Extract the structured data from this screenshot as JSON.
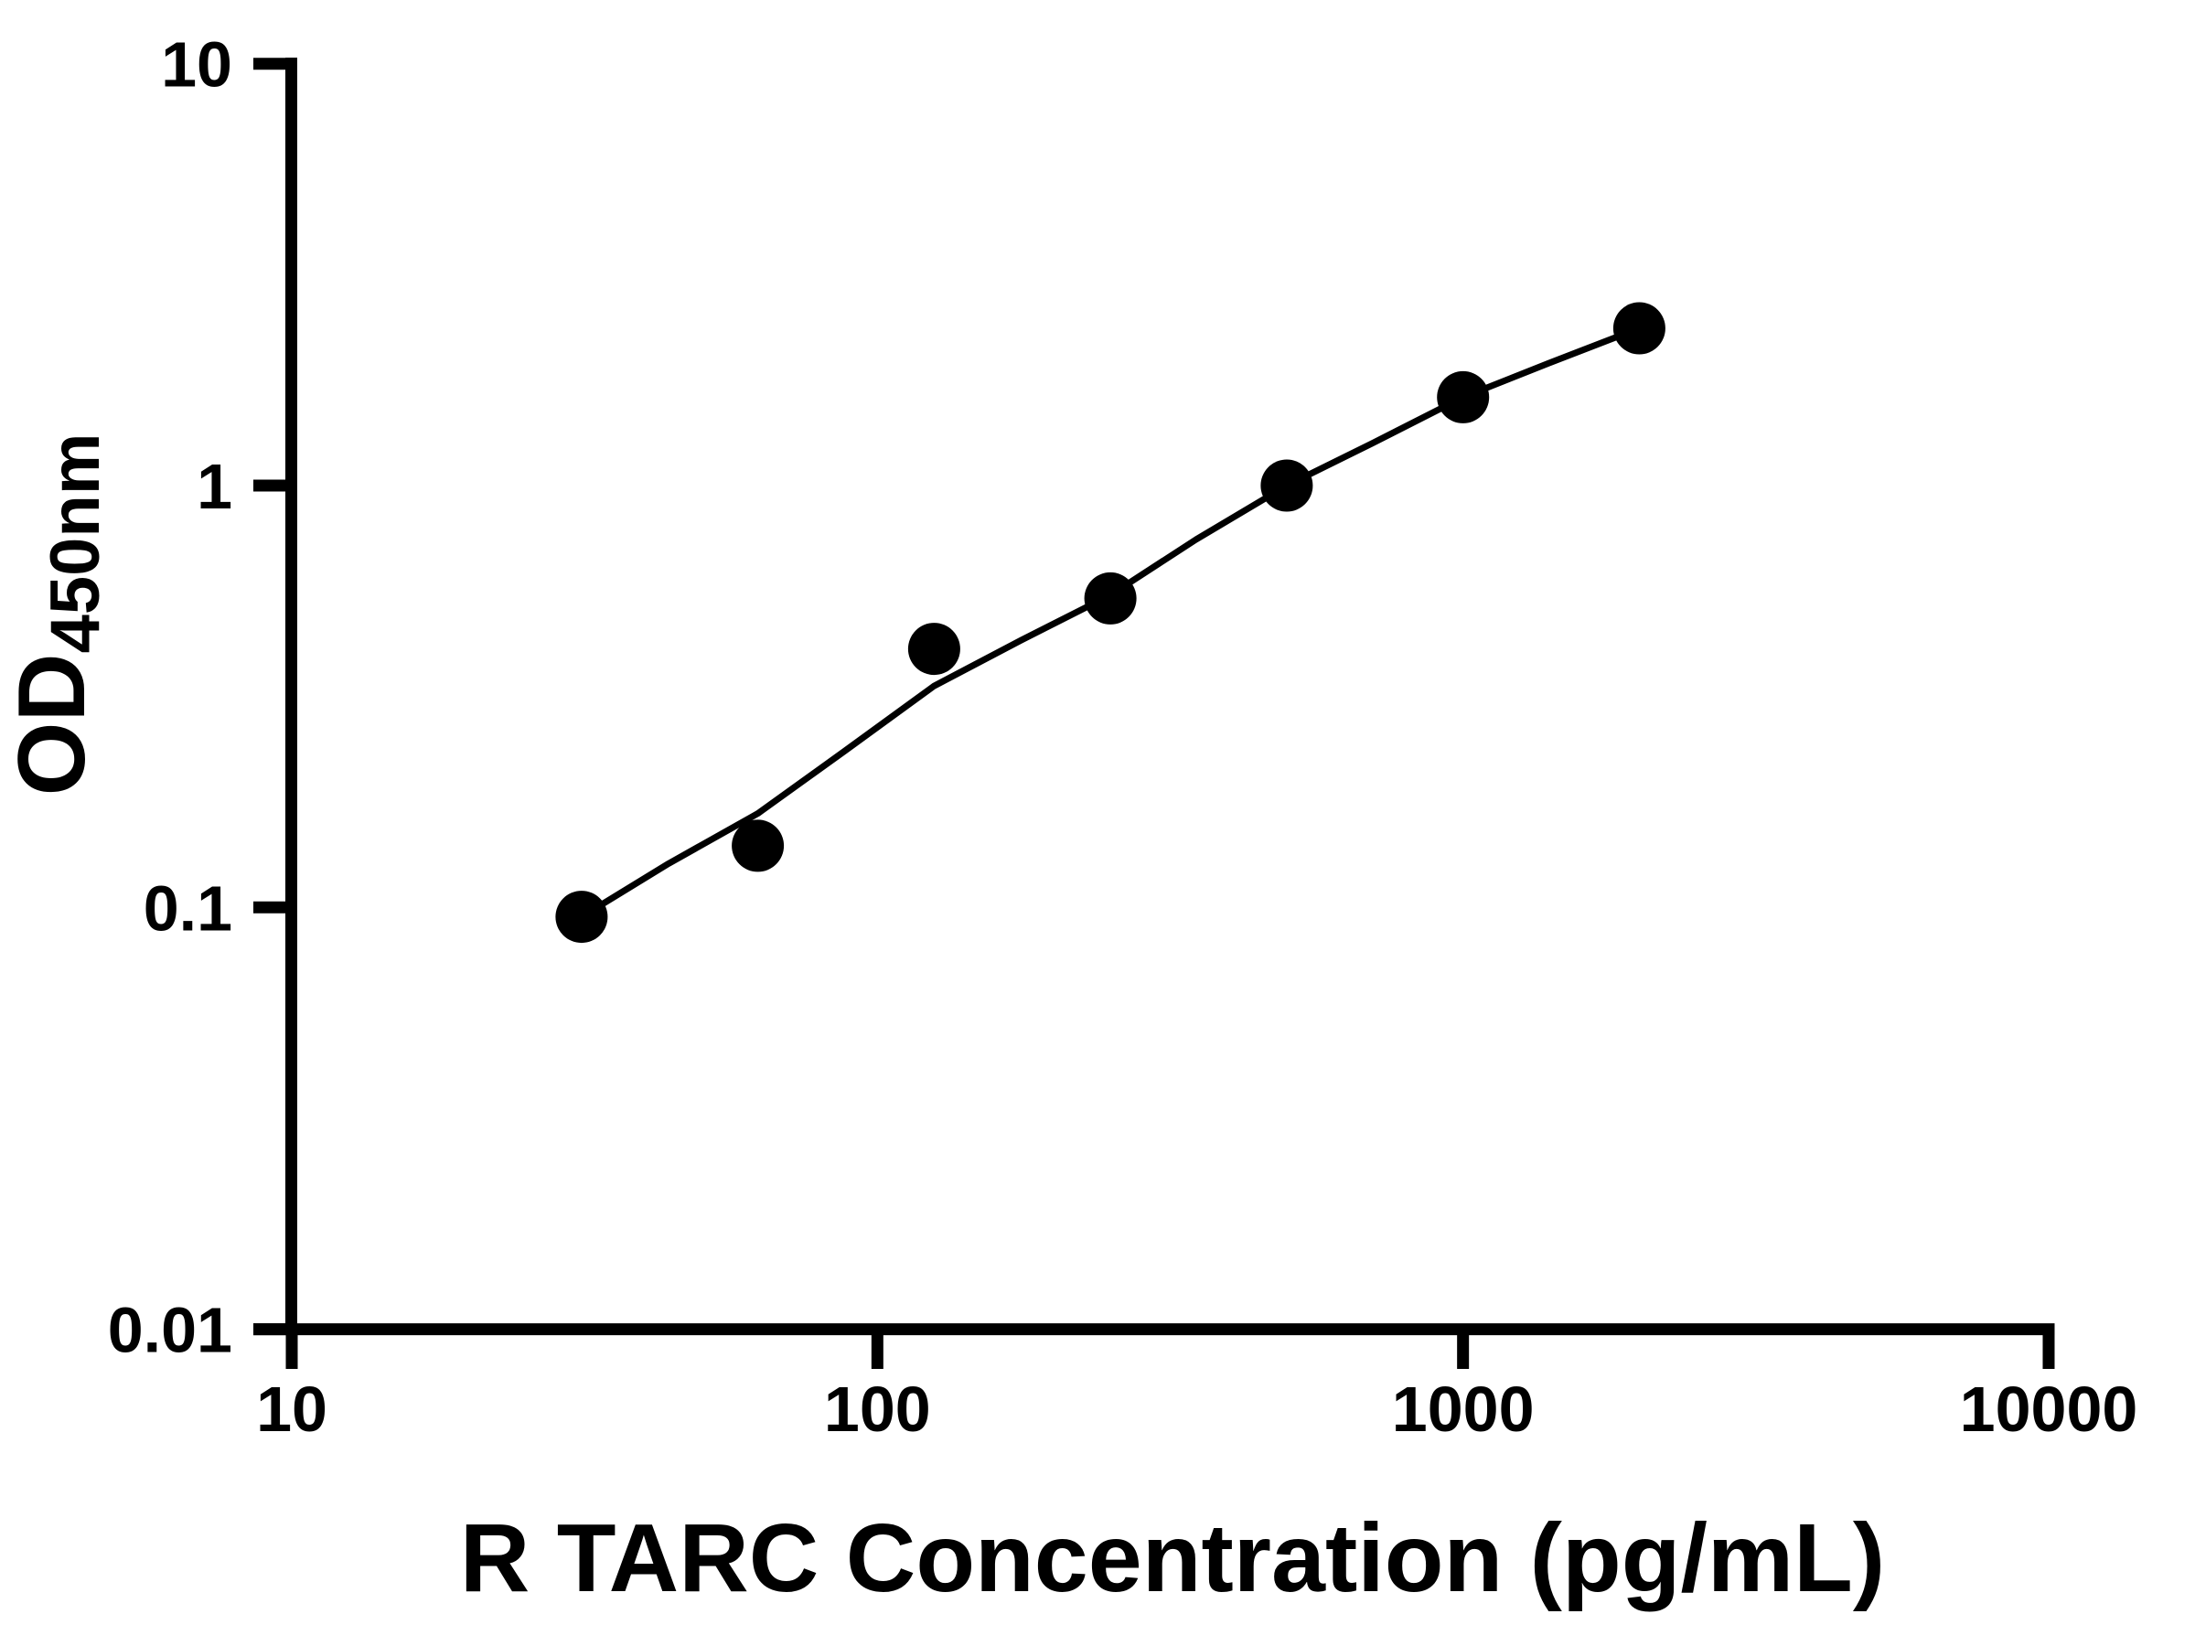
{
  "chart_data": {
    "type": "scatter",
    "background_color": "#ffffff",
    "foreground_color": "#000000",
    "grid": false,
    "x_axis": {
      "label": "R TARC Concentration (pg/mL)",
      "scale": "log",
      "range": [
        10,
        10000
      ],
      "tick_values": [
        10,
        100,
        1000,
        10000
      ],
      "tick_labels": [
        "10",
        "100",
        "1000",
        "10000"
      ]
    },
    "y_axis": {
      "label_main": "OD",
      "label_subscript": "450nm",
      "scale": "log",
      "range": [
        0.01,
        10
      ],
      "tick_values": [
        10,
        1,
        0.1,
        0.01
      ],
      "tick_labels": [
        "10",
        "1",
        "0.1",
        "0.01"
      ]
    },
    "series": [
      {
        "name": "standard-curve-points",
        "marker": "filled-circle",
        "color": "#000000",
        "points": [
          {
            "concentration_pg_ml": 31.25,
            "od450": 0.095
          },
          {
            "concentration_pg_ml": 62.5,
            "od450": 0.14
          },
          {
            "concentration_pg_ml": 125,
            "od450": 0.41
          },
          {
            "concentration_pg_ml": 250,
            "od450": 0.54
          },
          {
            "concentration_pg_ml": 500,
            "od450": 1.0
          },
          {
            "concentration_pg_ml": 1000,
            "od450": 1.62
          },
          {
            "concentration_pg_ml": 2000,
            "od450": 2.36
          }
        ]
      }
    ],
    "fit_curve": {
      "color": "#000000",
      "points": [
        [
          31.25,
          0.095
        ],
        [
          44,
          0.127
        ],
        [
          62.5,
          0.167
        ],
        [
          88,
          0.235
        ],
        [
          125,
          0.335
        ],
        [
          176,
          0.43
        ],
        [
          250,
          0.55
        ],
        [
          350,
          0.745
        ],
        [
          500,
          1.0
        ],
        [
          700,
          1.26
        ],
        [
          1000,
          1.62
        ],
        [
          1400,
          1.95
        ],
        [
          2000,
          2.36
        ]
      ]
    }
  }
}
